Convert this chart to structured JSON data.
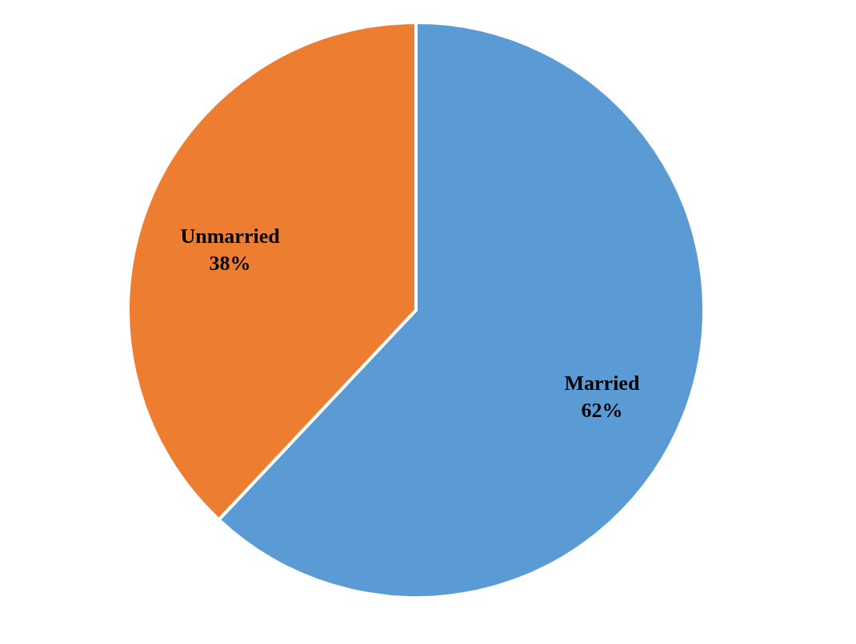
{
  "chart_data": {
    "type": "pie",
    "categories": [
      "Married",
      "Unmarried"
    ],
    "values": [
      62,
      38
    ],
    "colors": [
      "#5b9bd5",
      "#ed7d31"
    ],
    "value_labels": [
      "62%",
      "38%"
    ],
    "legend": false
  }
}
